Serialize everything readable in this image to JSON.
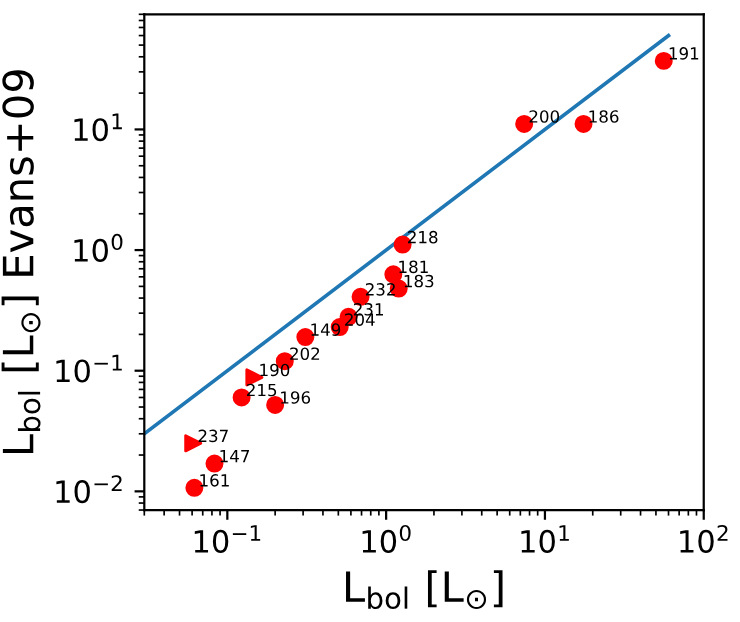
{
  "chart_data": {
    "type": "scatter",
    "xlabel": "L$_{bol}$ [L$_{⊙}$]",
    "ylabel": "L$_{bol}$ [L$_{⊙}$] Evans+09",
    "log": "xy",
    "grid": false,
    "xlim": [
      0.03,
      100
    ],
    "ylim": [
      0.007,
      90
    ],
    "xticks": [
      {
        "value": 0.1,
        "label": "10$^{−1}$"
      },
      {
        "value": 1,
        "label": "10$^{0}$"
      },
      {
        "value": 10,
        "label": "10$^{1}$"
      },
      {
        "value": 100,
        "label": "10$^{2}$"
      }
    ],
    "yticks": [
      {
        "value": 0.01,
        "label": "10$^{−2}$"
      },
      {
        "value": 0.1,
        "label": "10$^{−1}$"
      },
      {
        "value": 1,
        "label": "10$^{0}$"
      },
      {
        "value": 10,
        "label": "10$^{1}$"
      }
    ],
    "series": [
      {
        "type": "line",
        "color": "#1f77b4",
        "marker": "none",
        "x": [
          0.03,
          60
        ],
        "values": [
          0.03,
          60
        ]
      },
      {
        "color": "#ff0000",
        "marker": "circle",
        "x": [
          56,
          7.4,
          17.5,
          1.27,
          1.11,
          1.2,
          0.69,
          0.58,
          0.51,
          0.31,
          0.23,
          0.123,
          0.2,
          0.083,
          0.062
        ],
        "values": [
          37,
          11.1,
          11.1,
          1.11,
          0.63,
          0.48,
          0.41,
          0.28,
          0.23,
          0.19,
          0.12,
          0.06,
          0.052,
          0.017,
          0.0107
        ]
      },
      {
        "color": "#ff0000",
        "marker": "triangle",
        "x": [
          0.148,
          0.061
        ],
        "values": [
          0.088,
          0.025
        ]
      }
    ],
    "annotations": [
      {
        "text": "191",
        "x": 56,
        "y": 37
      },
      {
        "text": "200",
        "x": 7.4,
        "y": 11.1
      },
      {
        "text": "186",
        "x": 17.5,
        "y": 11.1
      },
      {
        "text": "218",
        "x": 1.27,
        "y": 1.11
      },
      {
        "text": "181",
        "x": 1.11,
        "y": 0.63
      },
      {
        "text": "183",
        "x": 1.2,
        "y": 0.48
      },
      {
        "text": "232",
        "x": 0.69,
        "y": 0.41
      },
      {
        "text": "231",
        "x": 0.58,
        "y": 0.28
      },
      {
        "text": "204",
        "x": 0.51,
        "y": 0.23
      },
      {
        "text": "149",
        "x": 0.31,
        "y": 0.19
      },
      {
        "text": "202",
        "x": 0.23,
        "y": 0.12
      },
      {
        "text": "190",
        "x": 0.148,
        "y": 0.088
      },
      {
        "text": "215",
        "x": 0.123,
        "y": 0.06
      },
      {
        "text": "196",
        "x": 0.2,
        "y": 0.052
      },
      {
        "text": "237",
        "x": 0.061,
        "y": 0.025
      },
      {
        "text": "147",
        "x": 0.083,
        "y": 0.017
      },
      {
        "text": "161",
        "x": 0.062,
        "y": 0.0107
      }
    ]
  }
}
